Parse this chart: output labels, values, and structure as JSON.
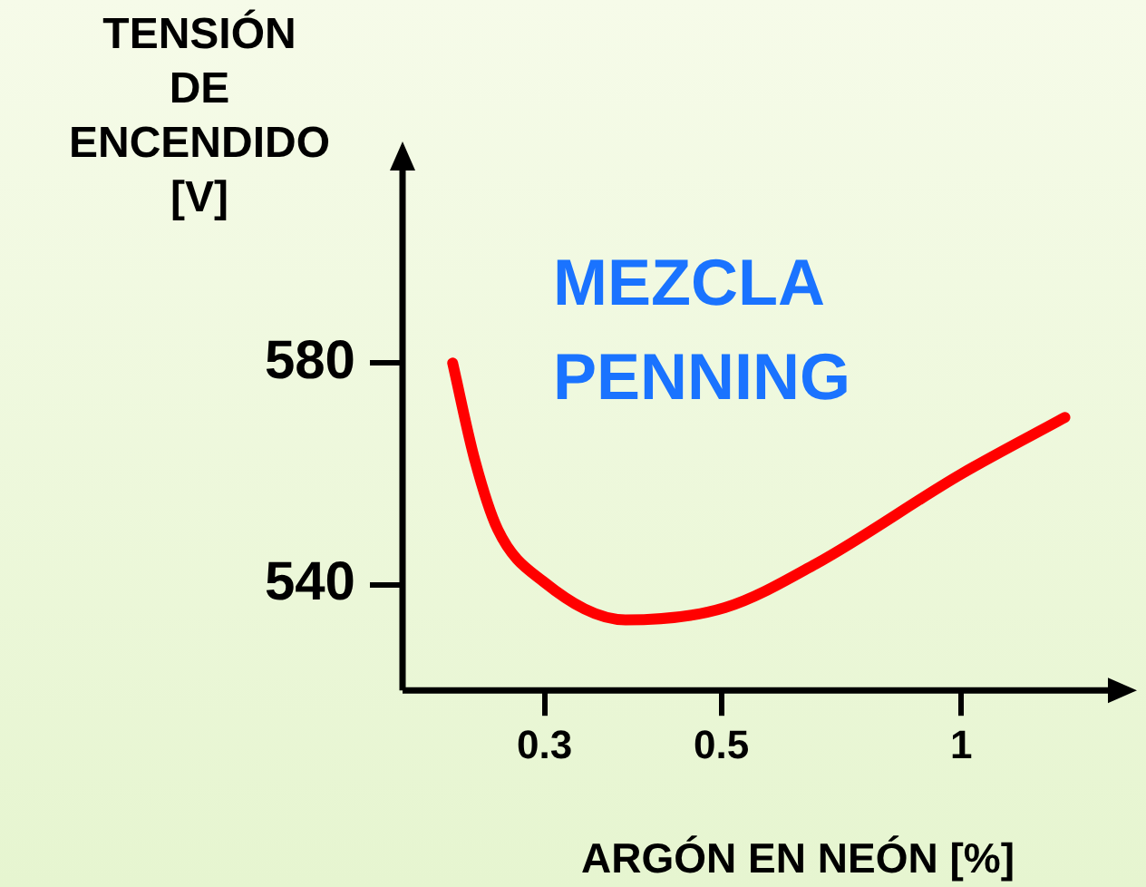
{
  "chart_data": {
    "type": "line",
    "ylabel": "TENSIÓN DE ENCENDIDO [V]",
    "xlabel": "ARGÓN EN NEÓN [%]",
    "annotations": [
      "MEZCLA PENNING"
    ],
    "x": [
      0.23,
      0.245,
      0.262,
      0.299,
      0.379,
      0.505,
      0.657,
      1,
      1.349
    ],
    "series": [
      {
        "color": "#ff0000",
        "values": [
          580,
          562.7,
          550,
          540.6,
          533.7,
          535.9,
          543.8,
          560,
          570.2
        ]
      }
    ],
    "log": "x",
    "xlim": [
      0.199,
      1.56
    ],
    "xticks": [
      0.3,
      0.5,
      1
    ],
    "ylim": [
      521,
      616
    ],
    "yticks": [
      540,
      580
    ],
    "grid": false,
    "legend": false,
    "marker": "none",
    "line_style": "solid"
  }
}
